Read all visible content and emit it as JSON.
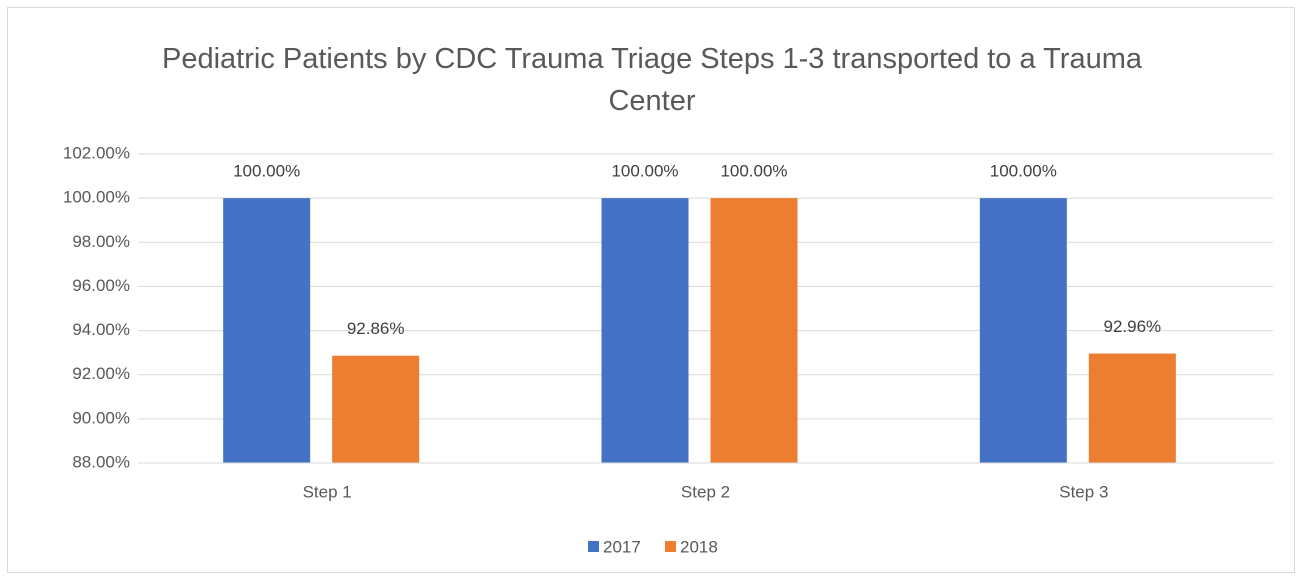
{
  "chart_data": {
    "type": "bar",
    "title": "Pediatric Patients by CDC Trauma Triage Steps 1-3 transported to  a Trauma Center",
    "categories": [
      "Step 1",
      "Step 2",
      "Step 3"
    ],
    "series": [
      {
        "name": "2017",
        "color": "#4472c4",
        "values": [
          100,
          100,
          100
        ],
        "value_labels": [
          "100.00%",
          "100.00%",
          "100.00%"
        ]
      },
      {
        "name": "2018",
        "color": "#ed7d31",
        "values": [
          92.86,
          100,
          92.96
        ],
        "value_labels": [
          "92.86%",
          "100.00%",
          "92.96%"
        ]
      }
    ],
    "ylim": [
      88,
      102
    ],
    "yticks": [
      {
        "value": 88,
        "label": "88.00%"
      },
      {
        "value": 90,
        "label": "90.00%"
      },
      {
        "value": 92,
        "label": "92.00%"
      },
      {
        "value": 94,
        "label": "94.00%"
      },
      {
        "value": 96,
        "label": "96.00%"
      },
      {
        "value": 98,
        "label": "98.00%"
      },
      {
        "value": 100,
        "label": "100.00%"
      },
      {
        "value": 102,
        "label": "102.00%"
      }
    ],
    "grid": true,
    "legend": "bottom"
  }
}
